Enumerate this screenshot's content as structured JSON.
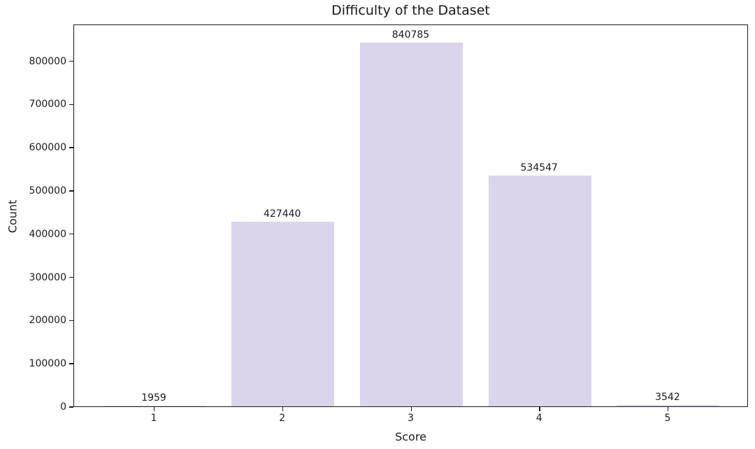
{
  "chart_data": {
    "type": "bar",
    "title": "Difficulty of the Dataset",
    "xlabel": "Score",
    "ylabel": "Count",
    "categories": [
      "1",
      "2",
      "3",
      "4",
      "5"
    ],
    "values": [
      1959,
      427440,
      840785,
      534547,
      3542
    ],
    "bar_labels": [
      "1959",
      "427440",
      "840785",
      "534547",
      "3542"
    ],
    "yticks": [
      0,
      100000,
      200000,
      300000,
      400000,
      500000,
      600000,
      700000,
      800000
    ],
    "ylim": [
      0,
      885000
    ],
    "grid": false,
    "legend": "none",
    "bar_color": "#DCD4EA",
    "spine_color": "#1a1a1a",
    "text_color": "#1a1a1a",
    "background_color": "#ffffff"
  }
}
